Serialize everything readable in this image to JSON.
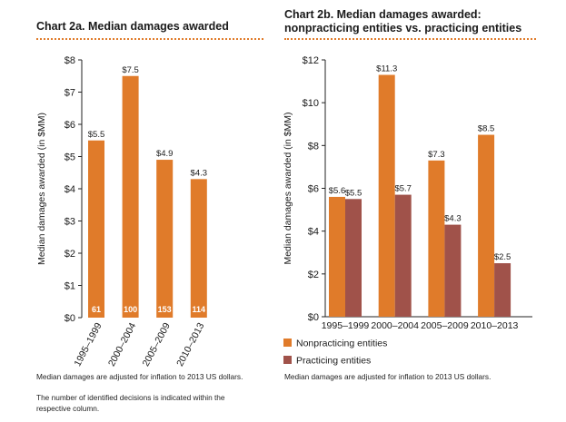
{
  "chart_data": [
    {
      "type": "bar",
      "title": "Chart 2a. Median damages awarded",
      "ylabel": "Median damages awarded (in $MM)",
      "xlabel": "",
      "ylim": [
        0,
        8
      ],
      "yticks": [
        "$0",
        "$1",
        "$2",
        "$3",
        "$4",
        "$5",
        "$6",
        "$7",
        "$8"
      ],
      "categories": [
        "1995–1999",
        "2000–2004",
        "2005–2009",
        "2010–2013"
      ],
      "values": [
        5.5,
        7.5,
        4.9,
        4.3
      ],
      "value_labels": [
        "$5.5",
        "$7.5",
        "$4.9",
        "$4.3"
      ],
      "decision_counts": [
        "61",
        "100",
        "153",
        "114"
      ],
      "bar_color": "#e07b2a",
      "notes": [
        "Median damages are adjusted for inflation to 2013 US dollars.",
        "The number of identified decisions is indicated within the respective column."
      ]
    },
    {
      "type": "bar",
      "title": "Chart 2b. Median damages awarded: nonpracticing entities vs. practicing entities",
      "title_lines": [
        "Chart 2b. Median damages awarded:",
        "nonpracticing entities vs. practicing entities"
      ],
      "ylabel": "Median damages awarded (in $MM)",
      "xlabel": "",
      "ylim": [
        0,
        12
      ],
      "yticks": [
        "$0",
        "$2",
        "$4",
        "$6",
        "$8",
        "$10",
        "$12"
      ],
      "categories": [
        "1995–1999",
        "2000–2004",
        "2005–2009",
        "2010–2013"
      ],
      "series": [
        {
          "name": "Nonpracticing entities",
          "color": "#e07b2a",
          "values": [
            5.6,
            11.3,
            7.3,
            8.5
          ],
          "labels": [
            "$5.6",
            "$11.3",
            "$7.3",
            "$8.5"
          ]
        },
        {
          "name": "Practicing entities",
          "color": "#a0524a",
          "values": [
            5.5,
            5.7,
            4.3,
            2.5
          ],
          "labels": [
            "$5.5",
            "$5.7",
            "$4.3",
            "$2.5"
          ]
        }
      ],
      "notes": [
        "Median damages are adjusted for inflation to 2013 US dollars."
      ]
    }
  ]
}
